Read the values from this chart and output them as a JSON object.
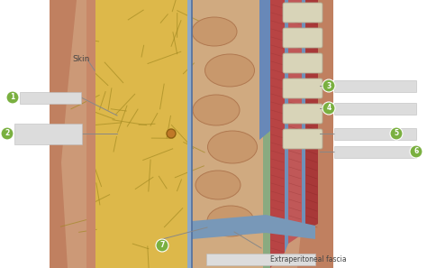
{
  "fig_width": 4.74,
  "fig_height": 2.97,
  "dpi": 100,
  "bg_color": "#ffffff",
  "skin_label": "Skin",
  "extraperitoneal_label": "Extraperitoneal fascia",
  "body_skin_color": "#cc9977",
  "fat_color": "#ddb84a",
  "fat_vein_color": "#a08820",
  "fascia_blue": "#7090b8",
  "fascia_blue2": "#90aac8",
  "fascia_green": "#88aa88",
  "muscle_red1": "#b84444",
  "muscle_red2": "#c05858",
  "muscle_red3": "#a83838",
  "ribs_color": "#d8d8c0",
  "intestine_color": "#c89870",
  "intestine_shadow": "#b88860",
  "peritoneum_color": "#c0a888",
  "number_color": "#7ab040",
  "label_box_color": "#dcdcdc",
  "line_color": "#888888",
  "text_color": "#444444",
  "navel_color": "#c07828",
  "bottom_fascia": "#6888a8"
}
